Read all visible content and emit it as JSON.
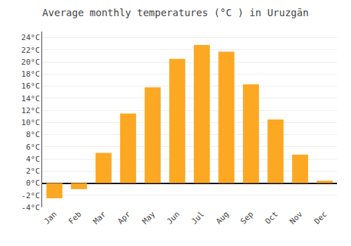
{
  "chart_data": {
    "type": "bar",
    "title": "Average monthly temperatures (°C ) in Uruzgān",
    "categories": [
      "Jan",
      "Feb",
      "Mar",
      "Apr",
      "May",
      "Jun",
      "Jul",
      "Aug",
      "Sep",
      "Oct",
      "Nov",
      "Dec"
    ],
    "values": [
      -2.5,
      -1.0,
      5.0,
      11.5,
      15.8,
      20.5,
      22.8,
      21.7,
      16.3,
      10.5,
      4.7,
      0.4
    ],
    "color": "#FCA823",
    "ylim": [
      -4,
      25
    ],
    "yticks": [
      {
        "value": -4,
        "label": "-4°C"
      },
      {
        "value": -2,
        "label": "-2°C"
      },
      {
        "value": 0,
        "label": "0°C"
      },
      {
        "value": 2,
        "label": "2°C"
      },
      {
        "value": 4,
        "label": "4°C"
      },
      {
        "value": 6,
        "label": "6°C"
      },
      {
        "value": 8,
        "label": "8°C"
      },
      {
        "value": 10,
        "label": "10°C"
      },
      {
        "value": 12,
        "label": "12°C"
      },
      {
        "value": 14,
        "label": "14°C"
      },
      {
        "value": 16,
        "label": "16°C"
      },
      {
        "value": 18,
        "label": "18°C"
      },
      {
        "value": 20,
        "label": "20°C"
      },
      {
        "value": 22,
        "label": "22°C"
      },
      {
        "value": 24,
        "label": "24°C"
      }
    ],
    "grid": true
  }
}
